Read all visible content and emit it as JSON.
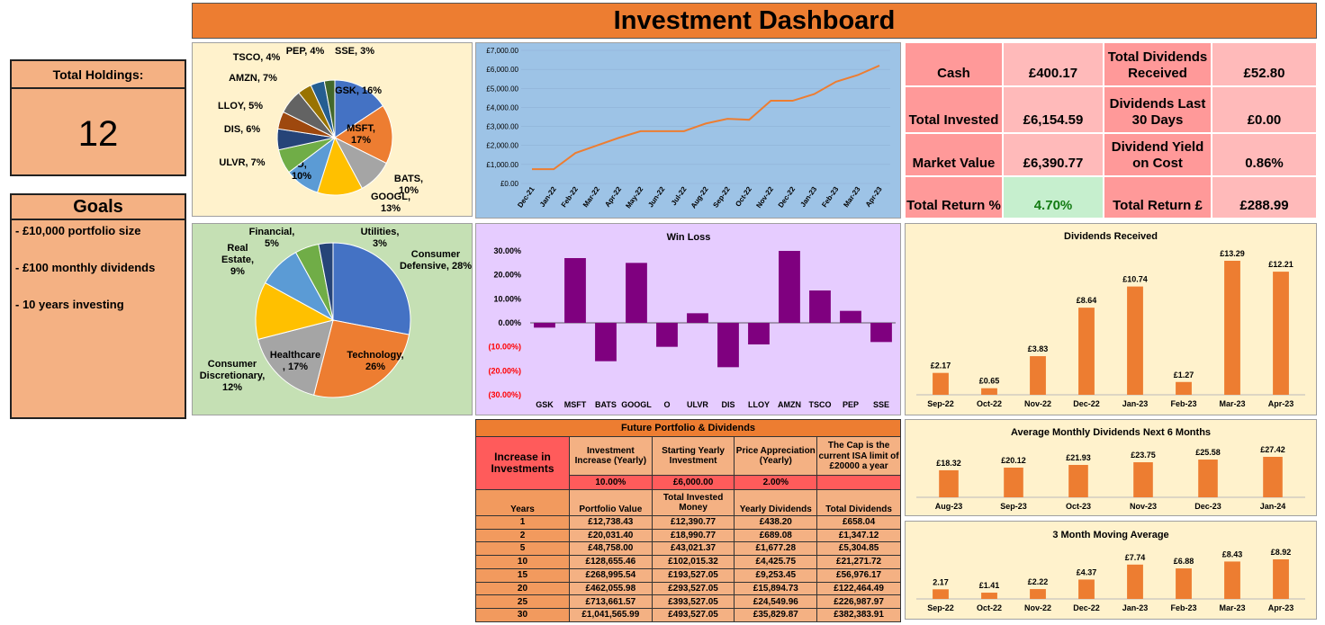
{
  "title": "Investment Dashboard",
  "holdings": {
    "label": "Total Holdings:",
    "value": "12"
  },
  "goals": {
    "title": "Goals",
    "items": [
      "- £10,000 portfolio size",
      "- £100 monthly dividends",
      "- 10 years investing"
    ]
  },
  "stats": {
    "cash_label": "Cash",
    "cash_value": "£400.17",
    "total_div_label": "Total Dividends Received",
    "total_div_value": "£52.80",
    "invested_label": "Total Invested",
    "invested_value": "£6,154.59",
    "div30_label": "Dividends Last 30 Days",
    "div30_value": "£0.00",
    "market_label": "Market Value",
    "market_value": "£6,390.77",
    "yield_label": "Dividend Yield on Cost",
    "yield_value": "0.86%",
    "return_pct_label": "Total Return %",
    "return_pct_value": "4.70%",
    "return_gbp_label": "Total Return £",
    "return_gbp_value": "£288.99"
  },
  "colors": {
    "orange": "#ed7d31",
    "purple": "#7f007f",
    "red_neg": "#ff0000",
    "green_pos": "#137b13"
  },
  "chart_data": [
    {
      "type": "pie",
      "categories": [
        "GSK",
        "MSFT",
        "BATS",
        "GOOGL",
        "O",
        "ULVR",
        "DIS",
        "LLOY",
        "AMZN",
        "TSCO",
        "PEP",
        "SSE"
      ],
      "labels": [
        "GSK, 16%",
        "MSFT, 17%",
        "BATS, 10%",
        "GOOGL, 13%",
        "O, 10%",
        "ULVR, 7%",
        "DIS, 6%",
        "LLOY, 5%",
        "AMZN, 7%",
        "TSCO, 4%",
        "PEP, 4%",
        "SSE, 3%"
      ],
      "values": [
        16,
        17,
        10,
        13,
        10,
        7,
        6,
        5,
        7,
        4,
        4,
        3
      ],
      "colors": [
        "#4472c4",
        "#ed7d31",
        "#a5a5a5",
        "#ffc000",
        "#5b9bd5",
        "#70ad47",
        "#264478",
        "#9e480e",
        "#636363",
        "#997300",
        "#255e91",
        "#43682b"
      ]
    },
    {
      "type": "line",
      "categories": [
        "Dec-21",
        "Jan-22",
        "Feb-22",
        "Mar-22",
        "Apr-22",
        "May-22",
        "Jun-22",
        "Jul-22",
        "Aug-22",
        "Sep-22",
        "Oct-22",
        "Nov-22",
        "Dec-22",
        "Jan-23",
        "Feb-23",
        "Mar-23",
        "Apr-23"
      ],
      "values": [
        750,
        750,
        1600,
        2000,
        2400,
        2750,
        2750,
        2750,
        3150,
        3400,
        3350,
        4350,
        4350,
        4700,
        5350,
        5700,
        6200
      ],
      "y_ticks": [
        "£0.00",
        "£1,000.00",
        "£2,000.00",
        "£3,000.00",
        "£4,000.00",
        "£5,000.00",
        "£6,000.00",
        "£7,000.00"
      ],
      "ylim": [
        0,
        7000
      ]
    },
    {
      "type": "pie",
      "categories": [
        "Consumer Defensive",
        "Technology",
        "Healthcare",
        "Consumer Discretionary",
        "Real Estate",
        "Financial",
        "Utilities"
      ],
      "labels": [
        "Consumer Defensive, 28%",
        "Technology, 26%",
        "Healthcare, 17%",
        "Consumer Discretionary, 12%",
        "Real Estate, 9%",
        "Financial, 5%",
        "Utilities, 3%"
      ],
      "values": [
        28,
        26,
        17,
        12,
        9,
        5,
        3
      ],
      "colors": [
        "#4472c4",
        "#ed7d31",
        "#a5a5a5",
        "#ffc000",
        "#5b9bd5",
        "#70ad47",
        "#264478"
      ]
    },
    {
      "type": "bar",
      "title": "Win Loss",
      "categories": [
        "GSK",
        "MSFT",
        "BATS",
        "GOOGL",
        "O",
        "ULVR",
        "DIS",
        "LLOY",
        "AMZN",
        "TSCO",
        "PEP",
        "SSE"
      ],
      "values": [
        -2,
        27,
        -16,
        25,
        -10,
        4,
        -18.5,
        -9,
        30,
        13.5,
        5,
        -8
      ],
      "y_ticks": [
        "30.00%",
        "20.00%",
        "10.00%",
        "0.00%",
        "(10.00%)",
        "(20.00%)",
        "(30.00%)"
      ],
      "ylim": [
        -30,
        30
      ]
    },
    {
      "type": "bar",
      "title": "Dividends  Received",
      "categories": [
        "Sep-22",
        "Oct-22",
        "Nov-22",
        "Dec-22",
        "Jan-23",
        "Feb-23",
        "Mar-23",
        "Apr-23"
      ],
      "values": [
        2.17,
        0.65,
        3.83,
        8.64,
        10.74,
        1.27,
        13.29,
        12.21
      ],
      "labels": [
        "£2.17",
        "£0.65",
        "£3.83",
        "£8.64",
        "£10.74",
        "£1.27",
        "£13.29",
        "£12.21"
      ],
      "ylim": [
        0,
        13.29
      ]
    },
    {
      "type": "bar",
      "title": "Average Monthly Dividends Next 6 Months",
      "categories": [
        "Aug-23",
        "Sep-23",
        "Oct-23",
        "Nov-23",
        "Dec-23",
        "Jan-24"
      ],
      "values": [
        18.32,
        20.12,
        21.93,
        23.75,
        25.58,
        27.42
      ],
      "labels": [
        "£18.32",
        "£20.12",
        "£21.93",
        "£23.75",
        "£25.58",
        "£27.42"
      ],
      "ylim": [
        0,
        27.42
      ]
    },
    {
      "type": "bar",
      "title": "3 Month Moving Average",
      "categories": [
        "Sep-22",
        "Oct-22",
        "Nov-22",
        "Dec-22",
        "Jan-23",
        "Feb-23",
        "Mar-23",
        "Apr-23"
      ],
      "values": [
        2.17,
        1.41,
        2.22,
        4.37,
        7.74,
        6.88,
        8.43,
        8.92
      ],
      "labels": [
        "2.17",
        "£1.41",
        "£2.22",
        "£4.37",
        "£7.74",
        "£6.88",
        "£8.43",
        "£8.92"
      ],
      "ylim": [
        0,
        8.92
      ]
    }
  ],
  "projection": {
    "title": "Future Portfolio & Dividends",
    "increase_label": "Increase in Investments",
    "col_headers": [
      "Investment Increase (Yearly)",
      "Starting Yearly Investment",
      "Price Appreciation (Yearly)",
      "The Cap is the current ISA limit of £20000 a year"
    ],
    "params": [
      "10.00%",
      "£6,000.00",
      "2.00%",
      ""
    ],
    "table_headers": [
      "Years",
      "Portfolio Value",
      "Total Invested Money",
      "Yearly Dividends",
      "Total Dividends"
    ],
    "rows": [
      [
        "1",
        "£12,738.43",
        "£12,390.77",
        "£438.20",
        "£658.04"
      ],
      [
        "2",
        "£20,031.40",
        "£18,990.77",
        "£689.08",
        "£1,347.12"
      ],
      [
        "5",
        "£48,758.00",
        "£43,021.37",
        "£1,677.28",
        "£5,304.85"
      ],
      [
        "10",
        "£128,655.46",
        "£102,015.32",
        "£4,425.75",
        "£21,271.72"
      ],
      [
        "15",
        "£268,995.54",
        "£193,527.05",
        "£9,253.45",
        "£56,976.17"
      ],
      [
        "20",
        "£462,055.98",
        "£293,527.05",
        "£15,894.73",
        "£122,464.49"
      ],
      [
        "25",
        "£713,661.57",
        "£393,527.05",
        "£24,549.96",
        "£226,987.97"
      ],
      [
        "30",
        "£1,041,565.99",
        "£493,527.05",
        "£35,829.87",
        "£382,383.91"
      ]
    ]
  }
}
